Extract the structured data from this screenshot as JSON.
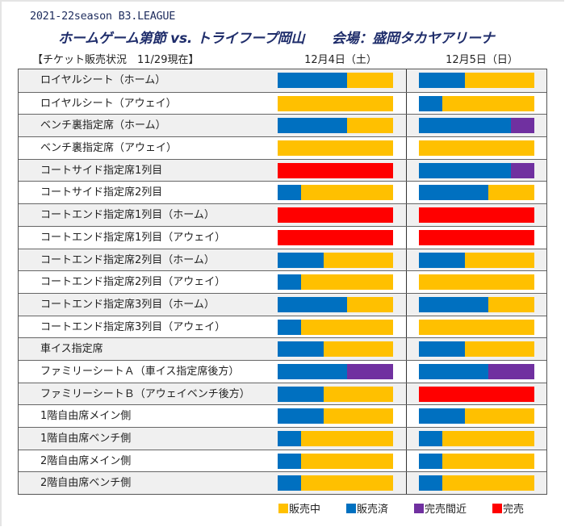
{
  "header": {
    "season": "2021-22season B3.LEAGUE",
    "title": "ホームゲーム第節 vs. トライフープ岡山　　会場：盛岡タカヤアリーナ",
    "status": "【チケット販売状況　11/29現在】"
  },
  "colors": {
    "on_sale": "#FFC000",
    "sold": "#0070C0",
    "almost_sold_out": "#7030A0",
    "sold_out": "#FF0000"
  },
  "legend": [
    {
      "key": "on_sale",
      "label": "販売中",
      "color": "#FFC000"
    },
    {
      "key": "sold",
      "label": "販売済",
      "color": "#0070C0"
    },
    {
      "key": "almost_sold_out",
      "label": "完売間近",
      "color": "#7030A0"
    },
    {
      "key": "sold_out",
      "label": "完売",
      "color": "#FF0000"
    }
  ],
  "chart_data": {
    "type": "bar",
    "orientation": "horizontal-stacked",
    "title": "ホームゲーム第節 vs. トライフープ岡山　会場：盛岡タカヤアリーナ",
    "subtitle": "【チケット販売状況　11/29現在】",
    "days": [
      "12月4日（土）",
      "12月5日（日）"
    ],
    "categories": [
      "ロイヤルシート（ホーム）",
      "ロイヤルシート（アウェイ）",
      "ベンチ裏指定席（ホーム）",
      "ベンチ裏指定席（アウェイ）",
      "コートサイド指定席1列目",
      "コートサイド指定席2列目",
      "コートエンド指定席1列目（ホーム）",
      "コートエンド指定席1列目（アウェイ）",
      "コートエンド指定席2列目（ホーム）",
      "コートエンド指定席2列目（アウェイ）",
      "コートエンド指定席3列目（ホーム）",
      "コートエンド指定席3列目（アウェイ）",
      "車イス指定席",
      "ファミリーシートＡ（車イス指定席後方）",
      "ファミリーシートＢ（アウェイベンチ後方）",
      "1階自由席メイン側",
      "1階自由席ベンチ側",
      "2階自由席メイン側",
      "2階自由席ベンチ側"
    ],
    "units": "percent of seats",
    "series_keys": [
      "sold",
      "almost_sold_out",
      "on_sale",
      "sold_out"
    ],
    "day1": [
      {
        "sold": 60,
        "almost_sold_out": 0,
        "on_sale": 40,
        "sold_out": 0
      },
      {
        "sold": 0,
        "almost_sold_out": 0,
        "on_sale": 100,
        "sold_out": 0
      },
      {
        "sold": 60,
        "almost_sold_out": 0,
        "on_sale": 40,
        "sold_out": 0
      },
      {
        "sold": 0,
        "almost_sold_out": 0,
        "on_sale": 100,
        "sold_out": 0
      },
      {
        "sold": 0,
        "almost_sold_out": 0,
        "on_sale": 0,
        "sold_out": 100
      },
      {
        "sold": 20,
        "almost_sold_out": 0,
        "on_sale": 80,
        "sold_out": 0
      },
      {
        "sold": 0,
        "almost_sold_out": 0,
        "on_sale": 0,
        "sold_out": 100
      },
      {
        "sold": 0,
        "almost_sold_out": 0,
        "on_sale": 0,
        "sold_out": 100
      },
      {
        "sold": 40,
        "almost_sold_out": 0,
        "on_sale": 60,
        "sold_out": 0
      },
      {
        "sold": 20,
        "almost_sold_out": 0,
        "on_sale": 80,
        "sold_out": 0
      },
      {
        "sold": 60,
        "almost_sold_out": 0,
        "on_sale": 40,
        "sold_out": 0
      },
      {
        "sold": 20,
        "almost_sold_out": 0,
        "on_sale": 80,
        "sold_out": 0
      },
      {
        "sold": 40,
        "almost_sold_out": 0,
        "on_sale": 60,
        "sold_out": 0
      },
      {
        "sold": 60,
        "almost_sold_out": 40,
        "on_sale": 0,
        "sold_out": 0
      },
      {
        "sold": 40,
        "almost_sold_out": 0,
        "on_sale": 60,
        "sold_out": 0
      },
      {
        "sold": 40,
        "almost_sold_out": 0,
        "on_sale": 60,
        "sold_out": 0
      },
      {
        "sold": 20,
        "almost_sold_out": 0,
        "on_sale": 80,
        "sold_out": 0
      },
      {
        "sold": 20,
        "almost_sold_out": 0,
        "on_sale": 80,
        "sold_out": 0
      },
      {
        "sold": 20,
        "almost_sold_out": 0,
        "on_sale": 80,
        "sold_out": 0
      }
    ],
    "day2": [
      {
        "sold": 40,
        "almost_sold_out": 0,
        "on_sale": 60,
        "sold_out": 0
      },
      {
        "sold": 20,
        "almost_sold_out": 0,
        "on_sale": 80,
        "sold_out": 0
      },
      {
        "sold": 80,
        "almost_sold_out": 20,
        "on_sale": 0,
        "sold_out": 0
      },
      {
        "sold": 0,
        "almost_sold_out": 0,
        "on_sale": 100,
        "sold_out": 0
      },
      {
        "sold": 80,
        "almost_sold_out": 20,
        "on_sale": 0,
        "sold_out": 0
      },
      {
        "sold": 60,
        "almost_sold_out": 0,
        "on_sale": 40,
        "sold_out": 0
      },
      {
        "sold": 0,
        "almost_sold_out": 0,
        "on_sale": 0,
        "sold_out": 100
      },
      {
        "sold": 0,
        "almost_sold_out": 0,
        "on_sale": 0,
        "sold_out": 100
      },
      {
        "sold": 40,
        "almost_sold_out": 0,
        "on_sale": 60,
        "sold_out": 0
      },
      {
        "sold": 0,
        "almost_sold_out": 0,
        "on_sale": 100,
        "sold_out": 0
      },
      {
        "sold": 60,
        "almost_sold_out": 0,
        "on_sale": 40,
        "sold_out": 0
      },
      {
        "sold": 0,
        "almost_sold_out": 0,
        "on_sale": 100,
        "sold_out": 0
      },
      {
        "sold": 40,
        "almost_sold_out": 0,
        "on_sale": 60,
        "sold_out": 0
      },
      {
        "sold": 60,
        "almost_sold_out": 40,
        "on_sale": 0,
        "sold_out": 0
      },
      {
        "sold": 0,
        "almost_sold_out": 0,
        "on_sale": 0,
        "sold_out": 100
      },
      {
        "sold": 40,
        "almost_sold_out": 0,
        "on_sale": 60,
        "sold_out": 0
      },
      {
        "sold": 20,
        "almost_sold_out": 0,
        "on_sale": 80,
        "sold_out": 0
      },
      {
        "sold": 20,
        "almost_sold_out": 0,
        "on_sale": 80,
        "sold_out": 0
      },
      {
        "sold": 20,
        "almost_sold_out": 0,
        "on_sale": 80,
        "sold_out": 0
      }
    ],
    "legend": [
      "販売中",
      "販売済",
      "完売間近",
      "完売"
    ],
    "legend_position": "bottom-right"
  }
}
